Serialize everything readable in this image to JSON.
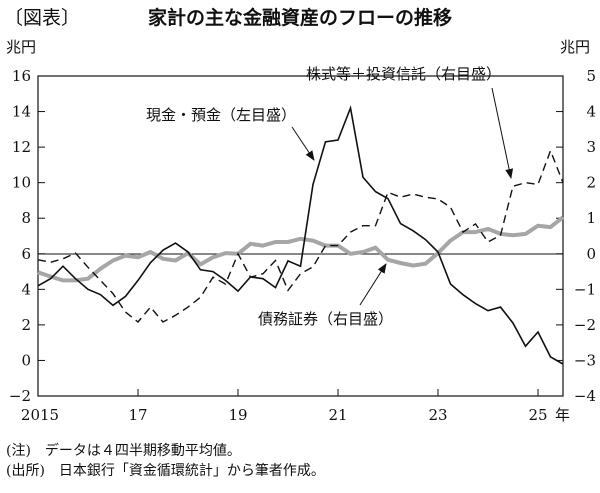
{
  "header": {
    "label": "〔図表〕",
    "title": "家計の主な金融資産のフローの推移"
  },
  "notes": [
    "(注)　データは４四半期移動平均値。",
    "(出所)　日本銀行「資金循環統計」から筆者作成。"
  ],
  "chart_data": {
    "type": "line",
    "title": "家計の主な金融資産のフローの推移",
    "left_unit": "兆円",
    "right_unit": "兆円",
    "x_unit": "年",
    "x_range": [
      2015,
      2025.5
    ],
    "x_ticks": [
      2015,
      2017,
      2019,
      2021,
      2023,
      2025
    ],
    "x_tick_labels": [
      "2015",
      "17",
      "19",
      "21",
      "23",
      "25"
    ],
    "ylim_left": [
      -2,
      16
    ],
    "y_ticks_left": [
      16,
      14,
      12,
      10,
      8,
      6,
      4,
      2,
      0,
      -2
    ],
    "ylim_right": [
      -4,
      5
    ],
    "y_ticks_right": [
      5,
      4,
      3,
      2,
      1,
      0,
      -1,
      -2,
      -3,
      -4
    ],
    "zero_line_right": 0,
    "frequency": "quarterly",
    "series": [
      {
        "name": "現金・預金（左目盛）",
        "axis": "left",
        "style": "solid",
        "color": "#111111",
        "values": [
          4.2,
          4.6,
          5.3,
          4.6,
          4.0,
          3.7,
          3.1,
          3.6,
          4.5,
          5.5,
          6.2,
          6.6,
          6.1,
          5.1,
          5.0,
          4.5,
          3.9,
          4.7,
          4.6,
          4.1,
          5.6,
          5.3,
          9.9,
          12.3,
          12.4,
          14.2,
          10.3,
          9.5,
          9.1,
          7.7,
          7.3,
          6.8,
          6.1,
          4.3,
          3.7,
          3.2,
          2.8,
          3.0,
          2.1,
          0.8,
          1.6,
          0.2,
          -0.2
        ]
      },
      {
        "name": "株式等＋投資信託（右目盛）",
        "axis": "right",
        "style": "dashed",
        "color": "#111111",
        "values": [
          -0.17,
          -0.24,
          -0.14,
          0.02,
          -0.38,
          -0.75,
          -1.12,
          -1.64,
          -1.92,
          -1.5,
          -1.92,
          -1.73,
          -1.5,
          -1.22,
          -0.66,
          -0.85,
          0.0,
          -0.66,
          -0.56,
          -0.19,
          -1.03,
          -0.56,
          -0.37,
          0.23,
          0.23,
          0.61,
          0.79,
          0.79,
          1.73,
          1.59,
          1.68,
          1.59,
          1.54,
          1.31,
          0.61,
          0.84,
          0.33,
          0.52,
          1.9,
          2.0,
          1.95,
          2.9,
          2.0
        ]
      },
      {
        "name": "債務証券（右目盛）",
        "axis": "right",
        "style": "thick-gray",
        "color": "#a6a6a6",
        "values": [
          -0.52,
          -0.64,
          -0.75,
          -0.75,
          -0.7,
          -0.42,
          -0.19,
          -0.05,
          -0.1,
          0.05,
          -0.14,
          -0.19,
          0.02,
          -0.3,
          -0.1,
          0.02,
          0.0,
          0.28,
          0.23,
          0.33,
          0.33,
          0.42,
          0.37,
          0.23,
          0.23,
          0.0,
          0.05,
          0.17,
          -0.17,
          -0.26,
          -0.33,
          -0.28,
          0.02,
          0.37,
          0.61,
          0.61,
          0.7,
          0.56,
          0.52,
          0.56,
          0.79,
          0.75,
          1.03
        ]
      }
    ]
  }
}
